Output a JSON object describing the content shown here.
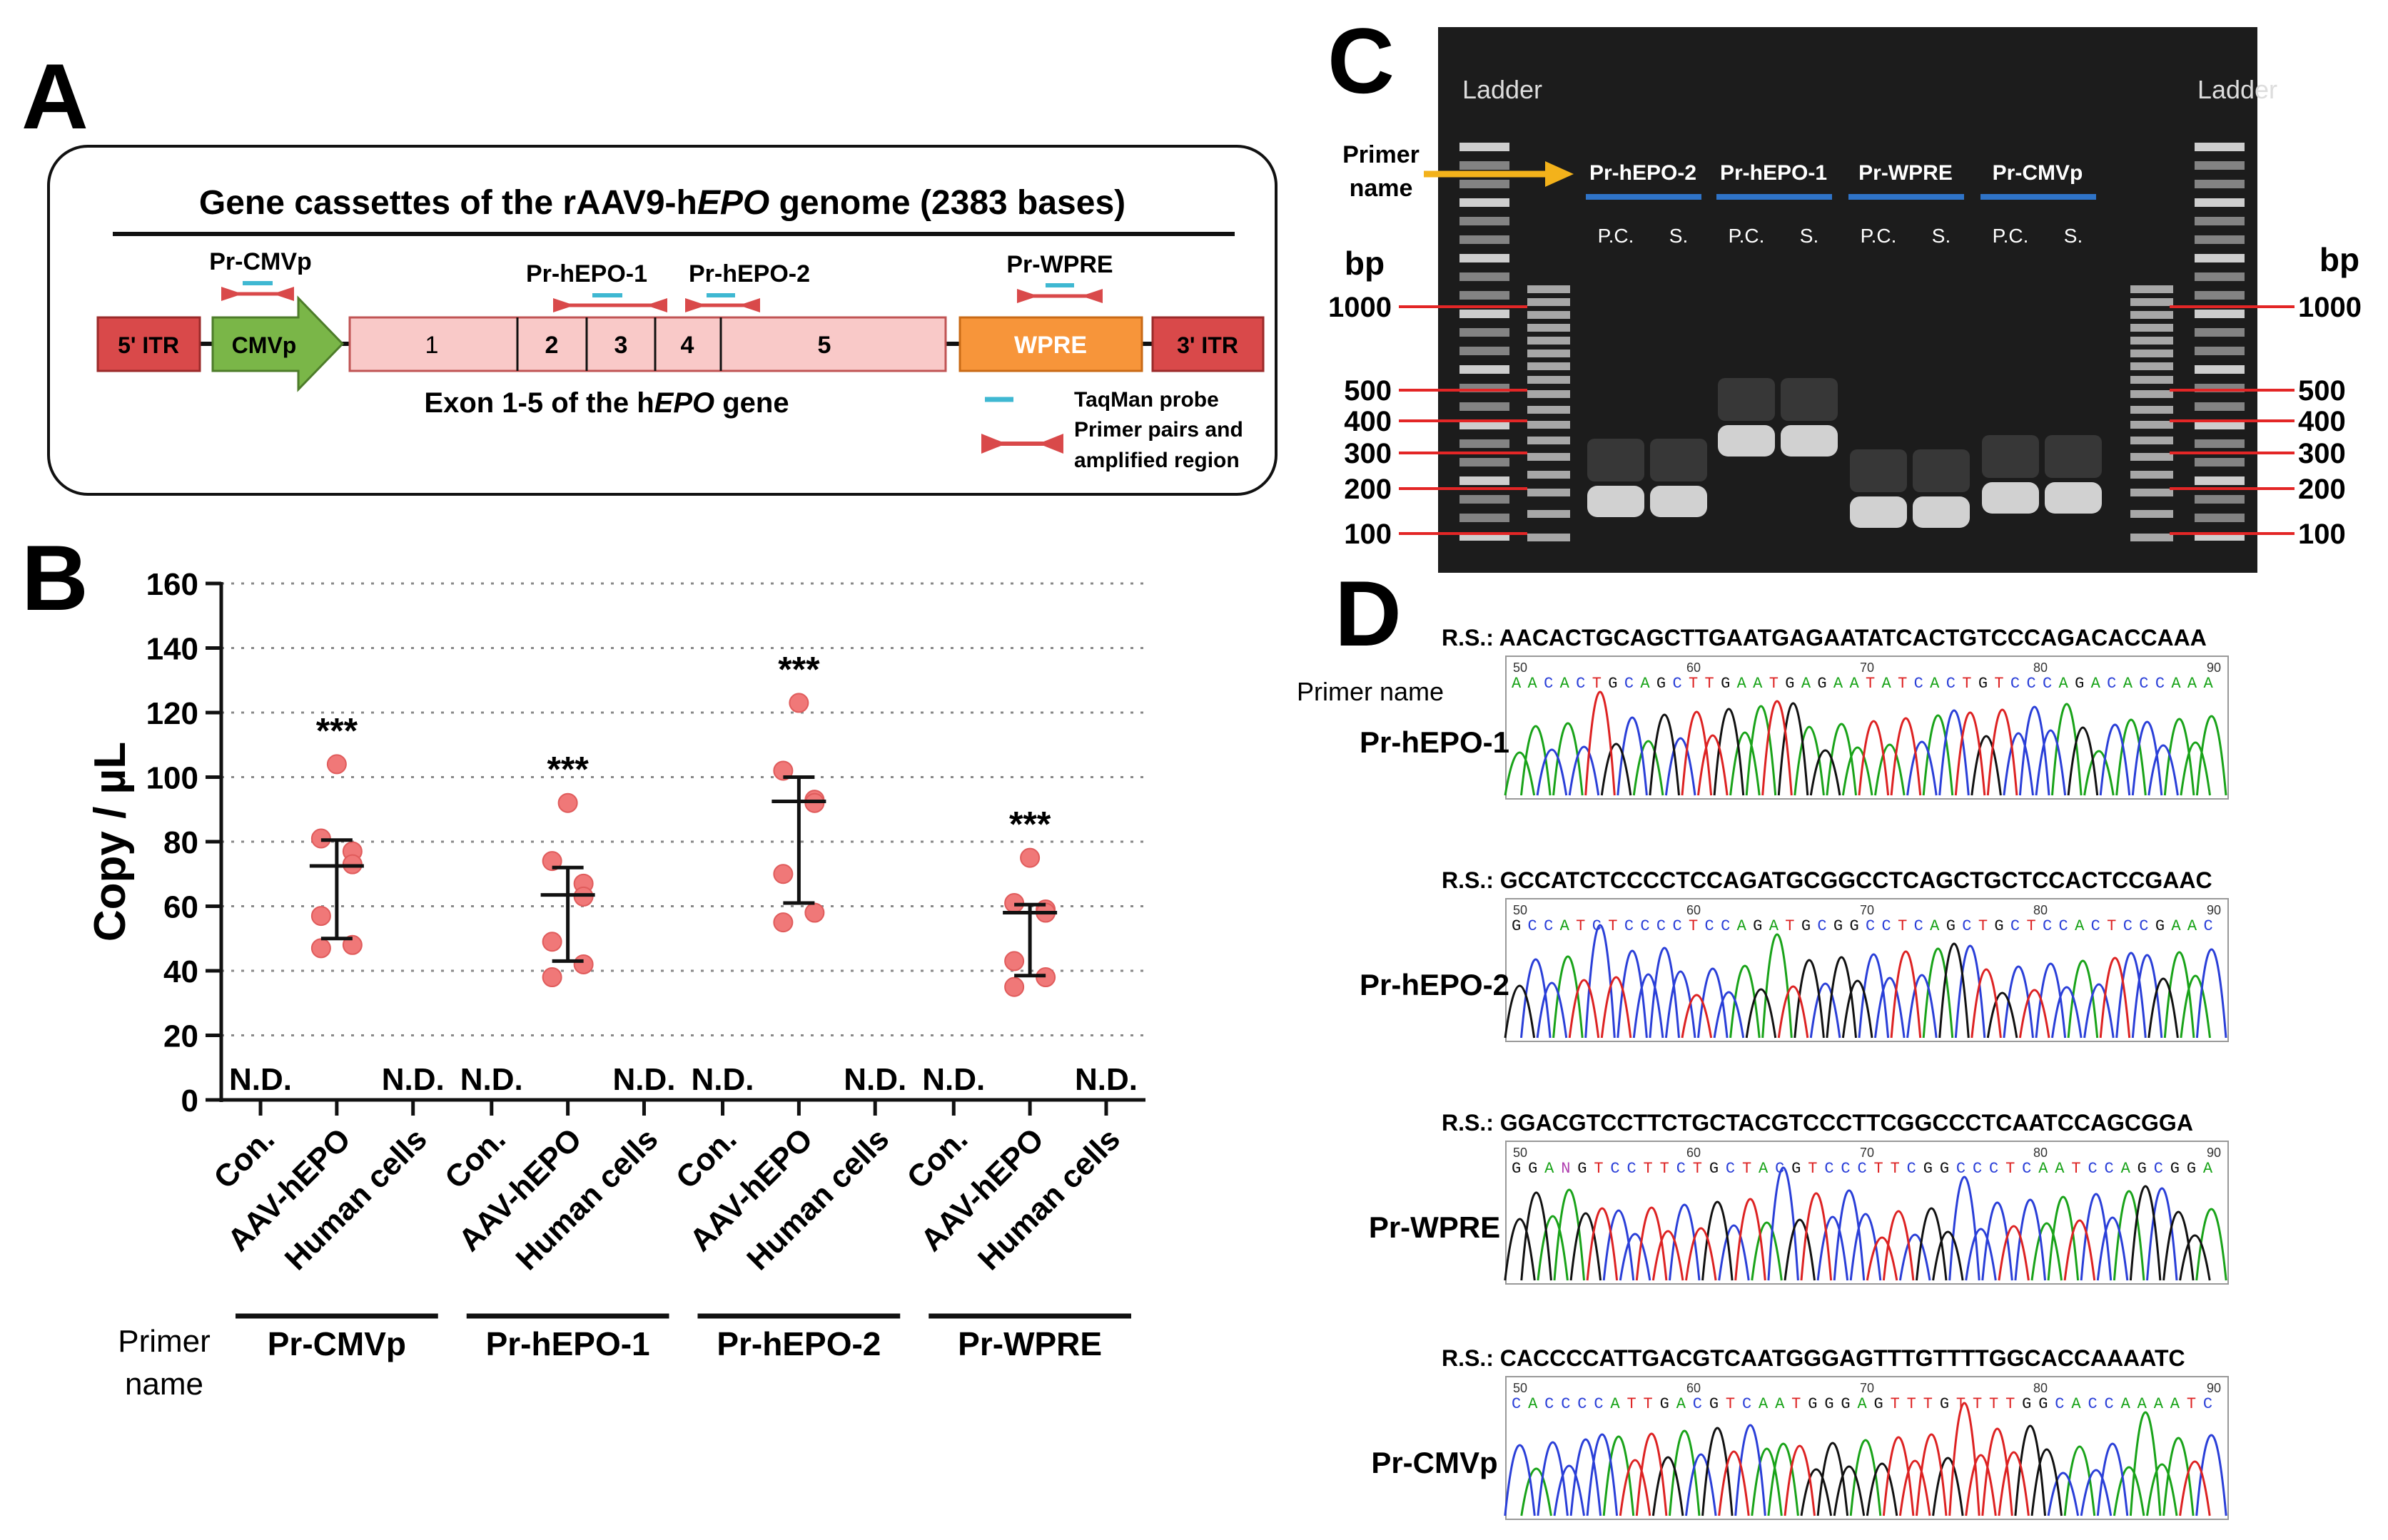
{
  "panels": {
    "A": "A",
    "B": "B",
    "C": "C",
    "D": "D"
  },
  "panelA": {
    "title_pre": "Gene cassettes of the rAAV9-h",
    "title_ital": "EPO",
    "title_post": " genome (2383 bases)",
    "elements": {
      "itr5": "5' ITR",
      "cmvp": "CMVp",
      "wpre": "WPRE",
      "itr3": "3' ITR"
    },
    "exons": [
      "1",
      "2",
      "3",
      "4",
      "5"
    ],
    "primers": [
      "Pr-CMVp",
      "Pr-hEPO-1",
      "Pr-hEPO-2",
      "Pr-WPRE"
    ],
    "exon_label_pre": "Exon 1-5 of the h",
    "exon_label_ital": "EPO",
    "exon_label_post": " gene",
    "legend": {
      "probe": "TaqMan probe",
      "pairs_line1": "Primer pairs and",
      "pairs_line2": "amplified region"
    },
    "colors": {
      "itr": "#d9494a",
      "cmvp": "#7ab648",
      "exon": "#f9c9c8",
      "wpre": "#f7953a",
      "probe": "#3fb8d2",
      "primer": "#d9494a"
    }
  },
  "panelB": {
    "ylabel": "Copy / µL",
    "yticks": [
      "0",
      "20",
      "40",
      "60",
      "80",
      "100",
      "120",
      "140",
      "160"
    ],
    "sig": "***",
    "nd": "N.D.",
    "primer_name_line1": "Primer",
    "primer_name_line2": "name",
    "chart_data": {
      "type": "scatter",
      "title": "",
      "ylabel": "Copy / µL",
      "ylim": [
        0,
        160
      ],
      "grid": true,
      "groups": [
        "Pr-CMVp",
        "Pr-hEPO-1",
        "Pr-hEPO-2",
        "Pr-WPRE"
      ],
      "categories": [
        "Con.",
        "AAV-hEPO",
        "Human cells"
      ],
      "series": [
        {
          "name": "Pr-CMVp",
          "aav_values": [
            104,
            81,
            77,
            73,
            57,
            48,
            47
          ],
          "mean": 72.5,
          "sd_low": 50,
          "sd_high": 80.5,
          "con": "N.D.",
          "human": "N.D."
        },
        {
          "name": "Pr-hEPO-1",
          "aav_values": [
            92,
            74,
            67,
            63,
            49,
            42,
            38
          ],
          "mean": 63.5,
          "sd_low": 43,
          "sd_high": 72,
          "con": "N.D.",
          "human": "N.D."
        },
        {
          "name": "Pr-hEPO-2",
          "aav_values": [
            123,
            102,
            93,
            92,
            70,
            58,
            55
          ],
          "mean": 92.5,
          "sd_low": 61,
          "sd_high": 100,
          "con": "N.D.",
          "human": "N.D."
        },
        {
          "name": "Pr-WPRE",
          "aav_values": [
            75,
            61,
            59,
            58,
            43,
            38,
            35
          ],
          "mean": 58,
          "sd_low": 38.5,
          "sd_high": 60.5,
          "con": "N.D.",
          "human": "N.D."
        }
      ]
    }
  },
  "panelC": {
    "ladder": "Ladder",
    "bp": "bp",
    "bp_marks": [
      "1000",
      "500",
      "400",
      "300",
      "200",
      "100"
    ],
    "primer_name_line1": "Primer",
    "primer_name_line2": "name",
    "lanes": [
      {
        "name": "Pr-hEPO-2",
        "pc": "P.C.",
        "s": "S."
      },
      {
        "name": "Pr-hEPO-1",
        "pc": "P.C.",
        "s": "S."
      },
      {
        "name": "Pr-WPRE",
        "pc": "P.C.",
        "s": "S."
      },
      {
        "name": "Pr-CMVp",
        "pc": "P.C.",
        "s": "S."
      }
    ],
    "colors": {
      "gel": "#1c1c1c",
      "lane_bar": "#2f74c8",
      "arrow": "#f3b21b",
      "marker": "#e32626"
    }
  },
  "panelD": {
    "primer_name": "Primer name",
    "axis_ticks": [
      "50",
      "60",
      "70",
      "80",
      "90"
    ],
    "rows": [
      {
        "primer": "Pr-hEPO-1",
        "rs": "R.S.: AACACTGCAGCTTGAATGAGAATATCACTGTCCCAGACACCAAA",
        "seq": "AACACTGCAGCTTGAATGAGAATATCACTGTCCCAGACACCAAA"
      },
      {
        "primer": "Pr-hEPO-2",
        "rs": "R.S.: GCCATCTCCCCTCCAGATGCGGCCTCAGCTGCTCCACTCCGAAC",
        "seq": "GCCATCTCCCCTCCAGATGCGGCCTCAGCTGCTCCACTCCGAAC"
      },
      {
        "primer": "Pr-WPRE",
        "rs": "R.S.: GGACGTCCTTCTGCTACGTCCCTTCGGCCCTCAATCCAGCGGA",
        "seq": "GGANGTCCTTCTGCTACGTCCCTTCGGCCCTCAATCCAGCGGA"
      },
      {
        "primer": "Pr-CMVp",
        "rs": "R.S.: CACCCCATTGACGTCAATGGGAGTTTGTTTTGGCACCAAAATC",
        "seq": "CACCCCATTGACGTCAATGGGAGTTTGTTTTGGCACCAAAATC"
      }
    ]
  }
}
